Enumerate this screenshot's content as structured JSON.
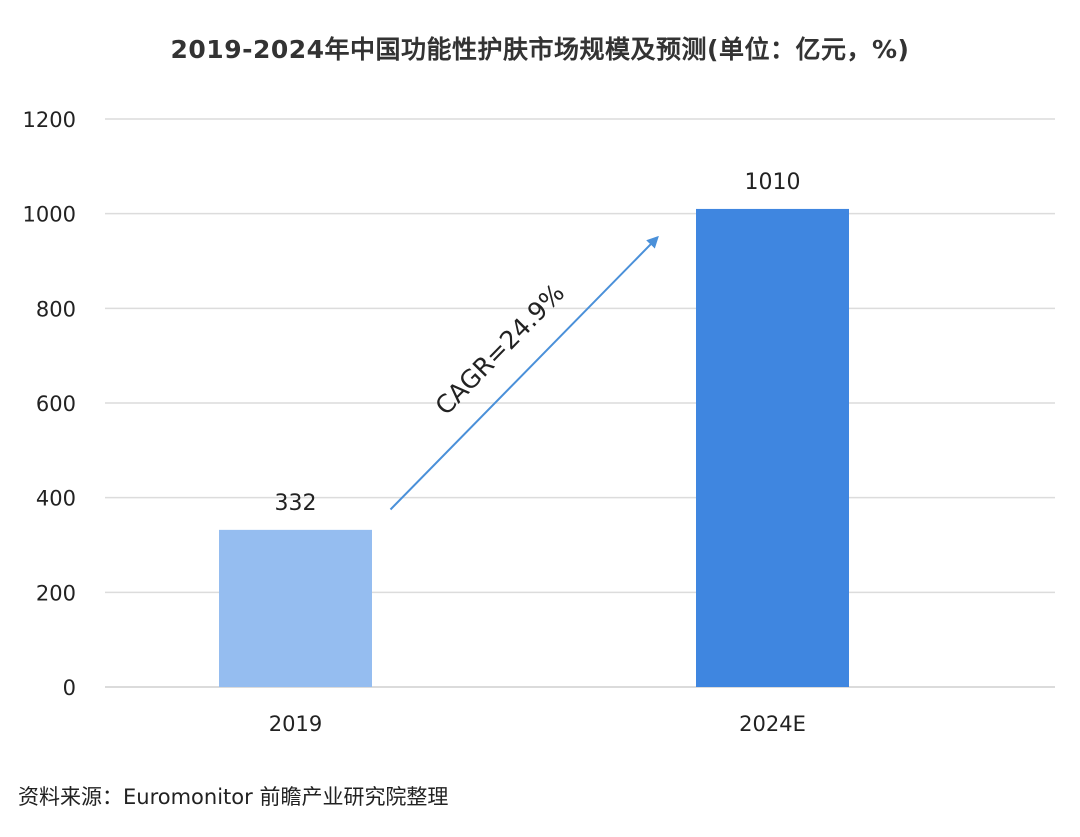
{
  "chart_data": {
    "type": "bar",
    "title": "2019-2024年中国功能性护肤市场规模及预测(单位：亿元，%)",
    "categories": [
      "2019",
      "2024E"
    ],
    "values": [
      332,
      1010
    ],
    "data_labels": [
      "332",
      "1010"
    ],
    "bar_colors": [
      "#95bdf0",
      "#3f86e0"
    ],
    "ylim": [
      0,
      1200
    ],
    "yticks": [
      0,
      200,
      400,
      600,
      800,
      1000,
      1200
    ],
    "ytick_labels": [
      "0",
      "200",
      "400",
      "600",
      "800",
      "1000",
      "1200"
    ],
    "grid": true,
    "legend": "none",
    "annotation": {
      "text": "CAGR=24.9%",
      "arrow_color": "#4a90d9",
      "from": {
        "category": "2019",
        "value": 375
      },
      "to": {
        "category": "2024E",
        "value": 950
      }
    },
    "source": "资料来源：Euromonitor 前瞻产业研究院整理"
  }
}
